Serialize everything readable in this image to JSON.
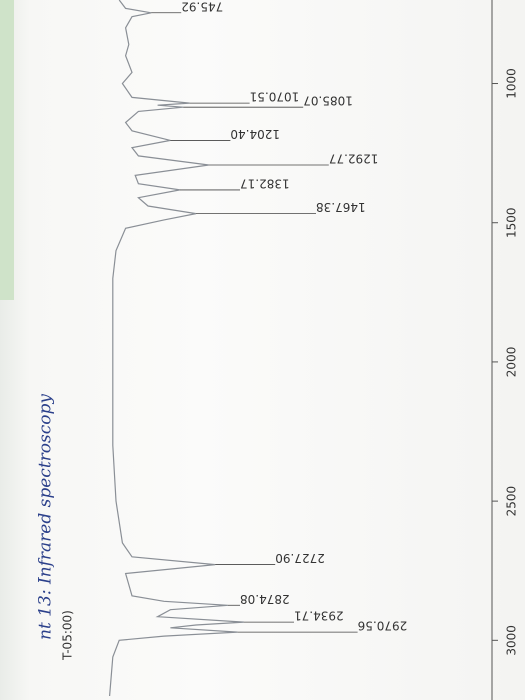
{
  "chart_data": {
    "type": "spectrum",
    "annotation": "nt 13: Infrared spectroscopy",
    "stamp": "T-05:00)",
    "x": [
      3200,
      3060,
      3000,
      2985,
      2970.56,
      2955,
      2945,
      2934.71,
      2915,
      2890,
      2874.08,
      2860,
      2840,
      2760,
      2727.9,
      2700,
      2650,
      2500,
      2300,
      2000,
      1700,
      1600,
      1520,
      1490,
      1467.38,
      1440,
      1410,
      1382.17,
      1360,
      1330,
      1292.77,
      1260,
      1230,
      1204.4,
      1170,
      1140,
      1100,
      1085.07,
      1078,
      1070.51,
      1050,
      1000,
      960,
      900,
      860,
      800,
      760,
      745.92,
      730,
      700
    ],
    "values": [
      97,
      96,
      94,
      80,
      57,
      78,
      70,
      55,
      82,
      78,
      60,
      80,
      90,
      92,
      64,
      90,
      93,
      95,
      96,
      96,
      96,
      95,
      92,
      80,
      70,
      85,
      88,
      75,
      88,
      89,
      66,
      88,
      90,
      78,
      90,
      92,
      88,
      74,
      82,
      72,
      90,
      93,
      90,
      92,
      91,
      92,
      90,
      84,
      92,
      94
    ],
    "color": "#8a8f96",
    "xlim": [
      3200,
      700
    ],
    "ylim": [
      0,
      100
    ],
    "xticks": [
      1000,
      1500,
      2000,
      2500,
      3000
    ],
    "peaks": [
      2970.56,
      2934.71,
      2874.08,
      {
        "value": 2727.9,
        "label": "2727.90"
      },
      1467.38,
      1382.17,
      1292.77,
      {
        "value": 1204.4,
        "label": "1204.40"
      },
      1085.07,
      1070.51,
      745.92
    ]
  }
}
